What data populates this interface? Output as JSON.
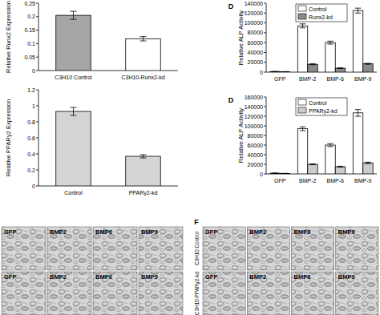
{
  "chart_data": [
    {
      "type": "bar",
      "y_label": "Relative Runx2 Expression",
      "categories": [
        "C3H10 Control",
        "C3H10-Runx2-kd"
      ],
      "values": [
        0.205,
        0.118
      ],
      "errors": [
        0.015,
        0.008
      ],
      "colors": [
        "#a6a6a6",
        "#ffffff"
      ],
      "ylim": [
        0,
        0.25
      ],
      "yticks": [
        0,
        0.05,
        0.1,
        0.15,
        0.2,
        0.25
      ]
    },
    {
      "type": "bar",
      "annotations": [
        "D"
      ],
      "y_label": "Relative ALP Activity",
      "categories": [
        "GFP",
        "BMP-2",
        "BMP-6",
        "BMP-9"
      ],
      "series": [
        {
          "name": "Control",
          "color": "#ffffff",
          "values": [
            1200,
            94000,
            60000,
            125000
          ],
          "errors": [
            300,
            4000,
            3000,
            5000
          ]
        },
        {
          "name": "Runx2-kd",
          "color": "#8c8c8c",
          "values": [
            900,
            16000,
            8000,
            17000
          ],
          "errors": [
            200,
            1000,
            800,
            1000
          ]
        }
      ],
      "ylim": [
        0,
        140000
      ],
      "yticks": [
        0,
        20000,
        40000,
        60000,
        80000,
        100000,
        120000,
        140000
      ],
      "legend": "top-center"
    },
    {
      "type": "bar",
      "y_label": "Relative PPARγ2 Expression",
      "categories": [
        "Control",
        "PPARγ2-kd"
      ],
      "values": [
        0.93,
        0.37
      ],
      "errors": [
        0.05,
        0.02
      ],
      "colors": [
        "#d4d4d4",
        "#d4d4d4"
      ],
      "ylim": [
        0,
        1.2
      ],
      "yticks": [
        0,
        0.2,
        0.4,
        0.6,
        0.8,
        1,
        1.2
      ]
    },
    {
      "type": "bar",
      "annotations": [
        "D"
      ],
      "y_label": "Relative ALP Activity",
      "categories": [
        "GFP",
        "BMP-2",
        "BMP-6",
        "BMP-9"
      ],
      "series": [
        {
          "name": "Control",
          "color": "#ffffff",
          "values": [
            1500,
            94000,
            60000,
            127000
          ],
          "errors": [
            300,
            4000,
            3000,
            7000
          ]
        },
        {
          "name": "PPARγ2-kd",
          "color": "#cccccc",
          "values": [
            1000,
            20000,
            15000,
            23000
          ],
          "errors": [
            200,
            1000,
            1000,
            1500
          ]
        }
      ],
      "ylim": [
        0,
        160000
      ],
      "yticks": [
        0,
        20000,
        40000,
        60000,
        80000,
        100000,
        120000,
        140000,
        160000
      ],
      "legend": "top-center"
    }
  ],
  "image_panels": [
    {
      "rows": [
        {
          "cells": [
            "GFP",
            "BMP2",
            "BMP6",
            "BMP9"
          ]
        },
        {
          "cells": [
            "GFP",
            "BMP2",
            "BMP6",
            "BMP9"
          ]
        }
      ]
    },
    {
      "letter": "F",
      "rows": [
        {
          "label": "C3H10 Control",
          "cells": [
            "GFP",
            "BMP2",
            "BMP6",
            "BMP9"
          ]
        },
        {
          "label": "C3H10-PPARγ2-kd",
          "cells": [
            "GFP",
            "BMP2",
            "BMP6",
            "BMP9"
          ]
        }
      ]
    }
  ]
}
